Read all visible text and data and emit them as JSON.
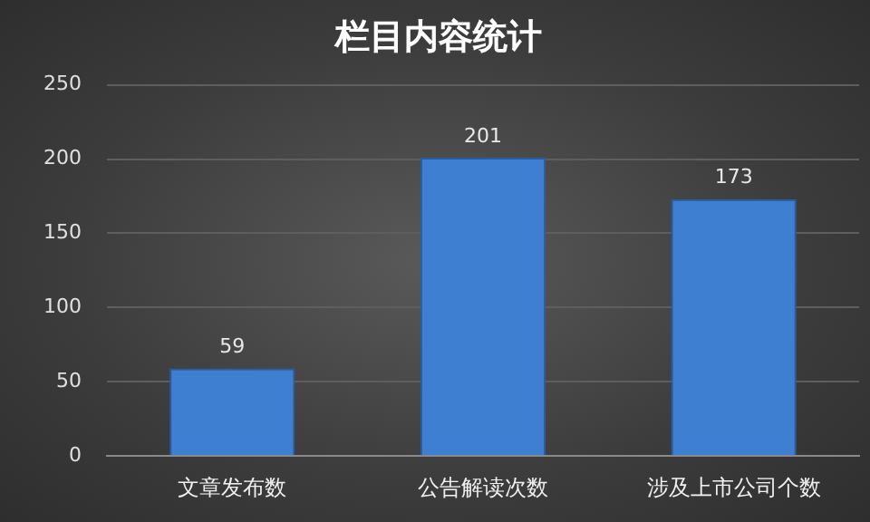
{
  "chart_data": {
    "type": "bar",
    "title": "栏目内容统计",
    "categories": [
      "文章发布数",
      "公告解读次数",
      "涉及上市公司个数"
    ],
    "values": [
      59,
      201,
      173
    ],
    "color": "#3f7fd1",
    "ylim": [
      0,
      250
    ],
    "yticks": [
      0,
      50,
      100,
      150,
      200,
      250
    ],
    "grid": "y",
    "data_labels": true,
    "legend": false
  }
}
